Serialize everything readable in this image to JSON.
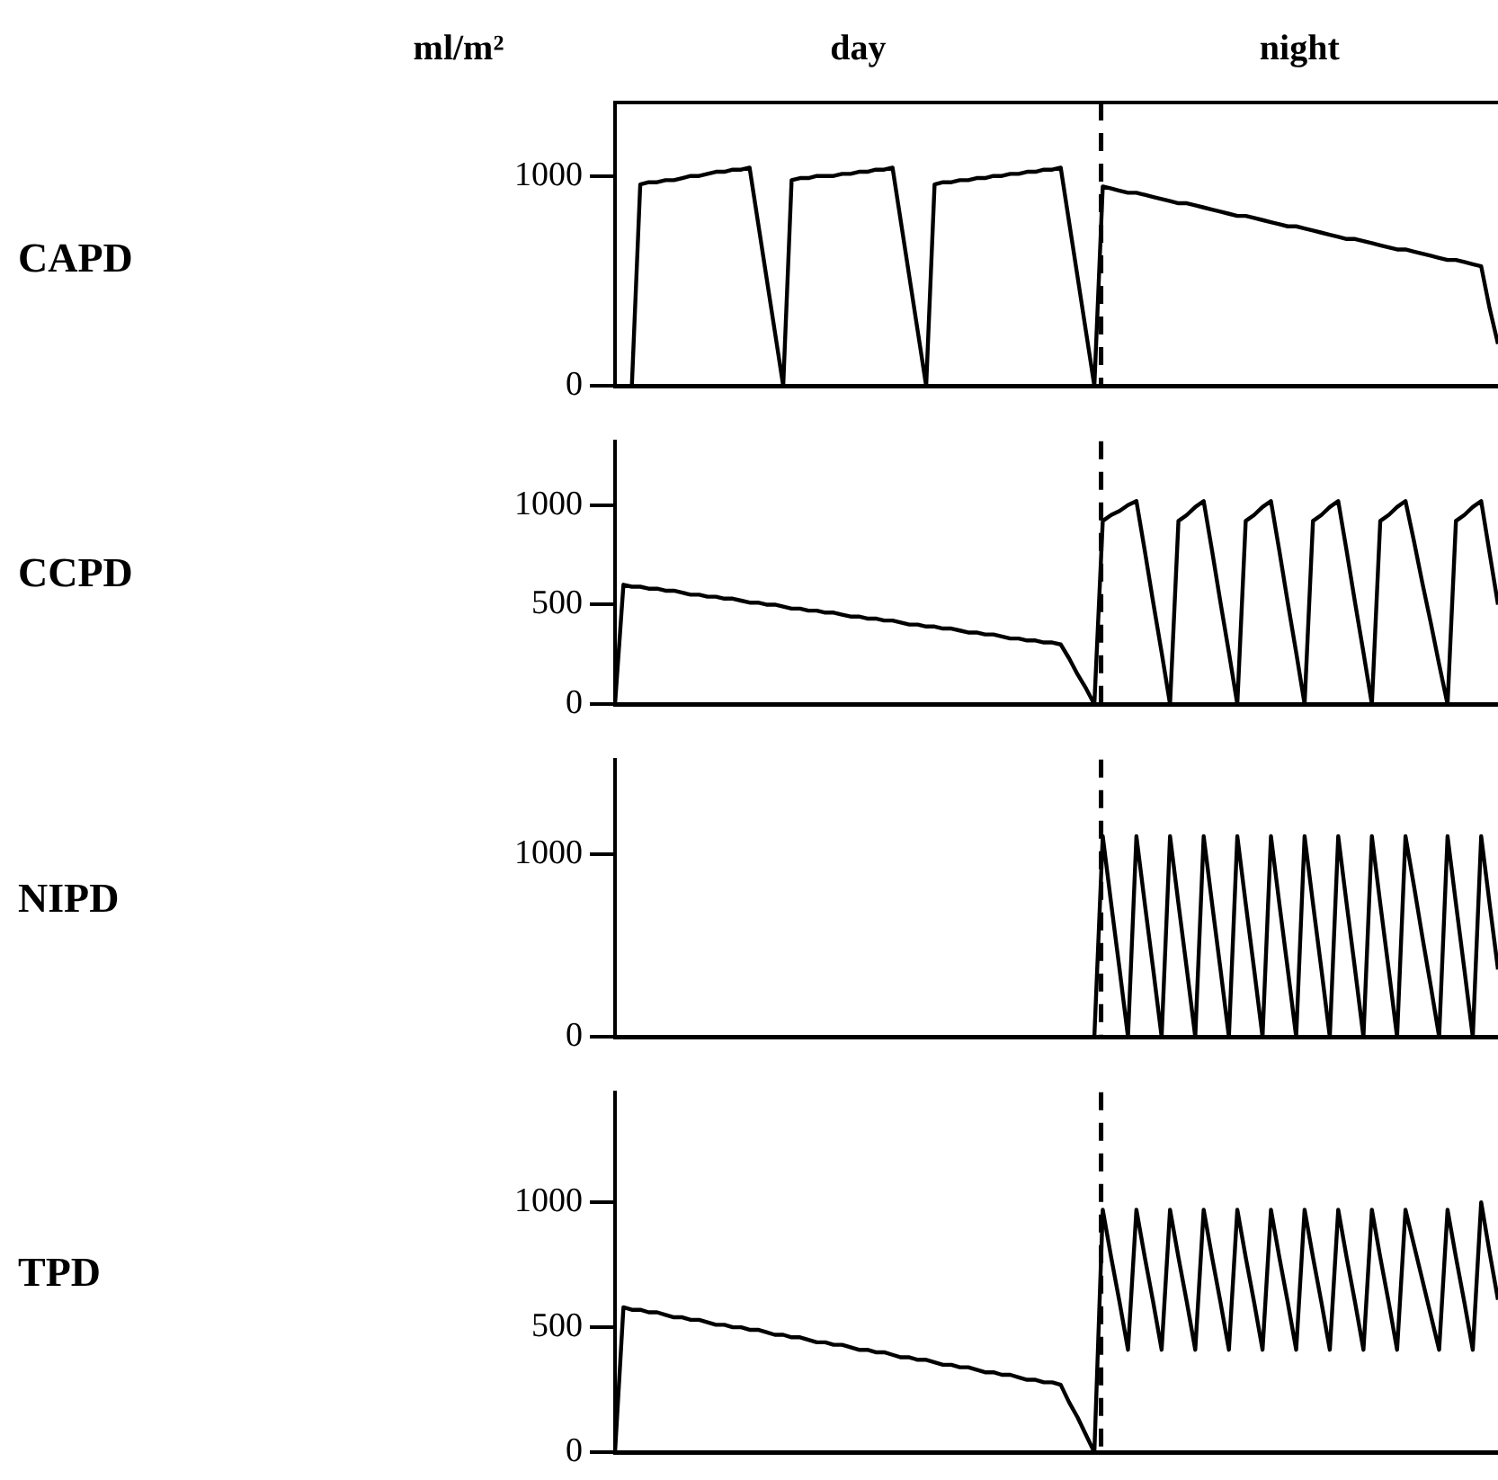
{
  "chart_data": [
    {
      "type": "line",
      "title": "ml/m²",
      "ylabel": "CAPD",
      "annotations": [
        "day",
        "night"
      ],
      "ylim": [
        0,
        1350
      ],
      "yticks": [
        0,
        1000
      ],
      "tick_labels": "y",
      "categories": [
        null,
        null,
        null,
        null,
        null,
        null,
        null,
        null,
        null,
        null,
        null,
        null,
        null,
        null,
        null,
        null,
        null,
        null,
        null,
        null,
        null,
        null,
        null,
        null,
        null,
        null,
        null,
        null,
        null,
        null,
        null,
        null,
        null,
        null,
        null,
        null,
        null,
        null,
        null,
        null,
        null,
        null,
        null,
        null,
        null,
        null,
        null,
        null,
        null,
        null,
        null,
        null,
        null,
        null,
        null,
        null,
        null,
        null,
        null,
        null,
        null,
        null,
        null,
        null,
        null,
        null,
        null,
        null,
        null,
        null,
        null,
        null,
        null,
        null,
        null,
        null,
        null,
        null,
        null,
        null,
        null,
        null,
        null,
        null,
        null,
        null,
        null,
        null,
        null,
        null,
        null,
        null,
        null,
        null,
        null,
        null,
        null,
        null,
        null,
        null,
        null,
        null,
        null,
        null,
        null,
        null
      ],
      "series": [
        {
          "color": "#000000",
          "values": [
            null,
            null,
            0,
            960,
            970,
            970,
            980,
            980,
            990,
            1000,
            1000,
            1010,
            1020,
            1020,
            1030,
            1030,
            1040,
            780,
            520,
            260,
            0,
            980,
            990,
            990,
            1000,
            1000,
            1000,
            1010,
            1010,
            1020,
            1020,
            1030,
            1030,
            1040,
            780,
            520,
            260,
            0,
            960,
            970,
            970,
            980,
            980,
            990,
            990,
            1000,
            1000,
            1010,
            1010,
            1020,
            1020,
            1030,
            1030,
            1040,
            780,
            520,
            260,
            0,
            950,
            940,
            930,
            920,
            920,
            910,
            900,
            890,
            880,
            870,
            870,
            860,
            850,
            840,
            830,
            820,
            810,
            810,
            800,
            790,
            780,
            770,
            760,
            760,
            750,
            740,
            730,
            720,
            710,
            700,
            700,
            690,
            680,
            670,
            660,
            650,
            650,
            640,
            630,
            620,
            610,
            600,
            600,
            590,
            580,
            570,
            370,
            200
          ]
        }
      ]
    },
    {
      "type": "line",
      "ylabel": "CCPD",
      "ylim": [
        0,
        1320
      ],
      "yticks": [
        0,
        500,
        1000
      ],
      "tick_labels": "y",
      "categories": [
        null,
        null,
        null,
        null,
        null,
        null,
        null,
        null,
        null,
        null,
        null,
        null,
        null,
        null,
        null,
        null,
        null,
        null,
        null,
        null,
        null,
        null,
        null,
        null,
        null,
        null,
        null,
        null,
        null,
        null,
        null,
        null,
        null,
        null,
        null,
        null,
        null,
        null,
        null,
        null,
        null,
        null,
        null,
        null,
        null,
        null,
        null,
        null,
        null,
        null,
        null,
        null,
        null,
        null,
        null,
        null,
        null,
        null,
        null,
        null,
        null,
        null,
        null,
        null,
        null,
        null,
        null,
        null,
        null,
        null,
        null,
        null,
        null,
        null,
        null,
        null,
        null,
        null,
        null,
        null,
        null,
        null,
        null,
        null,
        null,
        null,
        null,
        null,
        null,
        null,
        null,
        null,
        null,
        null,
        null,
        null,
        null,
        null,
        null,
        null,
        null,
        null,
        null,
        null,
        null,
        null
      ],
      "series": [
        {
          "color": "#000000",
          "values": [
            0,
            600,
            590,
            590,
            580,
            580,
            570,
            570,
            560,
            550,
            550,
            540,
            540,
            530,
            530,
            520,
            510,
            510,
            500,
            500,
            490,
            480,
            480,
            470,
            470,
            460,
            460,
            450,
            440,
            440,
            430,
            430,
            420,
            420,
            410,
            400,
            400,
            390,
            390,
            380,
            380,
            370,
            360,
            360,
            350,
            350,
            340,
            330,
            330,
            320,
            320,
            310,
            310,
            300,
            230,
            150,
            80,
            0,
            920,
            950,
            970,
            1000,
            1020,
            770,
            510,
            260,
            0,
            920,
            950,
            990,
            1020,
            770,
            510,
            260,
            0,
            920,
            950,
            990,
            1020,
            770,
            510,
            260,
            0,
            920,
            950,
            990,
            1020,
            770,
            510,
            260,
            0,
            920,
            950,
            990,
            1020,
            820,
            610,
            410,
            200,
            0,
            920,
            950,
            990,
            1020,
            760,
            500
          ]
        }
      ]
    },
    {
      "type": "line",
      "ylabel": "NIPD",
      "ylim": [
        0,
        1520
      ],
      "yticks": [
        0,
        1000
      ],
      "tick_labels": "y",
      "categories": [
        null,
        null,
        null,
        null,
        null,
        null,
        null,
        null,
        null,
        null,
        null,
        null,
        null,
        null,
        null,
        null,
        null,
        null,
        null,
        null,
        null,
        null,
        null,
        null,
        null,
        null,
        null,
        null,
        null,
        null,
        null,
        null,
        null,
        null,
        null,
        null,
        null,
        null,
        null,
        null,
        null,
        null,
        null,
        null,
        null,
        null,
        null,
        null,
        null,
        null,
        null,
        null,
        null,
        null,
        null,
        null,
        null,
        null,
        null,
        null,
        null,
        null,
        null,
        null,
        null,
        null,
        null,
        null,
        null,
        null,
        null,
        null,
        null,
        null,
        null,
        null,
        null,
        null,
        null,
        null,
        null,
        null,
        null,
        null,
        null,
        null,
        null,
        null,
        null,
        null,
        null,
        null,
        null,
        null,
        null,
        null,
        null,
        null,
        null,
        null,
        null,
        null,
        null,
        null,
        null,
        null
      ],
      "series": [
        {
          "color": "#000000",
          "values": [
            0,
            0,
            0,
            0,
            0,
            0,
            0,
            0,
            0,
            0,
            0,
            0,
            0,
            0,
            0,
            0,
            0,
            0,
            0,
            0,
            0,
            0,
            0,
            0,
            0,
            0,
            0,
            0,
            0,
            0,
            0,
            0,
            0,
            0,
            0,
            0,
            0,
            0,
            0,
            0,
            0,
            0,
            0,
            0,
            0,
            0,
            0,
            0,
            0,
            0,
            0,
            0,
            0,
            0,
            0,
            0,
            0,
            0,
            1100,
            730,
            370,
            0,
            1100,
            730,
            370,
            0,
            1100,
            730,
            370,
            0,
            1100,
            730,
            370,
            0,
            1100,
            730,
            370,
            0,
            1100,
            730,
            370,
            0,
            1100,
            730,
            370,
            0,
            1100,
            730,
            370,
            0,
            1100,
            730,
            370,
            0,
            1100,
            830,
            550,
            280,
            0,
            1100,
            730,
            370,
            0,
            1100,
            730,
            370
          ]
        }
      ]
    },
    {
      "type": "line",
      "ylabel": "TPD",
      "ylim": [
        0,
        1440
      ],
      "yticks": [
        0,
        500,
        1000
      ],
      "tick_labels": "y",
      "categories": [
        null,
        null,
        null,
        null,
        null,
        null,
        null,
        null,
        null,
        null,
        null,
        null,
        null,
        null,
        null,
        null,
        null,
        null,
        null,
        null,
        null,
        null,
        null,
        null,
        null,
        null,
        null,
        null,
        null,
        null,
        null,
        null,
        null,
        null,
        null,
        null,
        null,
        null,
        null,
        null,
        null,
        null,
        null,
        null,
        null,
        null,
        null,
        null,
        null,
        null,
        null,
        null,
        null,
        null,
        null,
        null,
        null,
        null,
        null,
        null,
        null,
        null,
        null,
        null,
        null,
        null,
        null,
        null,
        null,
        null,
        null,
        null,
        null,
        null,
        null,
        null,
        null,
        null,
        null,
        null,
        null,
        null,
        null,
        null,
        null,
        null,
        null,
        null,
        null,
        null,
        null,
        null,
        null,
        null,
        null,
        null,
        null,
        null,
        null,
        null,
        null,
        null,
        null,
        null,
        null,
        null
      ],
      "series": [
        {
          "color": "#000000",
          "values": [
            0,
            580,
            570,
            570,
            560,
            560,
            550,
            540,
            540,
            530,
            530,
            520,
            510,
            510,
            500,
            500,
            490,
            490,
            480,
            470,
            470,
            460,
            460,
            450,
            440,
            440,
            430,
            430,
            420,
            410,
            410,
            400,
            400,
            390,
            380,
            380,
            370,
            370,
            360,
            350,
            350,
            340,
            340,
            330,
            320,
            320,
            310,
            310,
            300,
            290,
            290,
            280,
            280,
            270,
            200,
            140,
            70,
            0,
            970,
            780,
            600,
            410,
            970,
            780,
            600,
            410,
            970,
            780,
            600,
            410,
            970,
            780,
            600,
            410,
            970,
            780,
            600,
            410,
            970,
            780,
            600,
            410,
            970,
            780,
            600,
            410,
            970,
            780,
            600,
            410,
            970,
            780,
            600,
            410,
            970,
            830,
            690,
            550,
            410,
            970,
            780,
            600,
            410,
            1000,
            800,
            610
          ]
        }
      ]
    }
  ]
}
